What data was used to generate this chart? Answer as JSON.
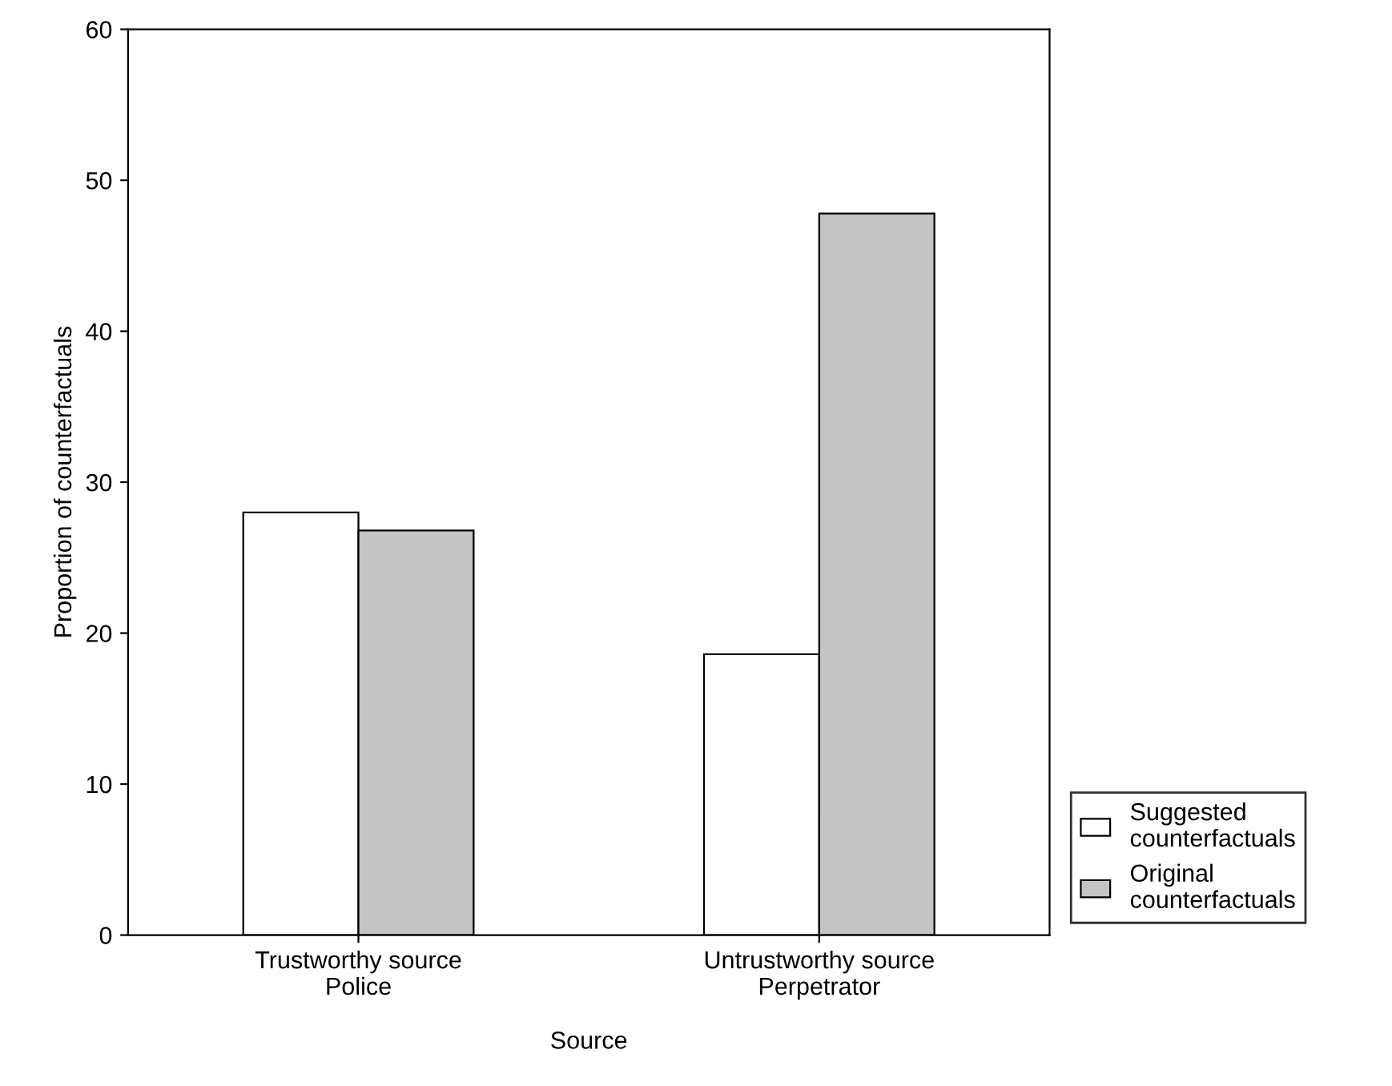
{
  "chart_data": {
    "type": "bar",
    "xlabel": "Source",
    "ylabel": "Proportion of counterfactuals",
    "categories": [
      "Trustworthy source\nPolice",
      "Untrustworthy source\nPerpetrator"
    ],
    "series": [
      {
        "name": "Suggested\ncounterfactuals",
        "color": "#ffffff",
        "values": [
          28,
          18.6
        ]
      },
      {
        "name": "Original\ncounterfactuals",
        "color": "#c4c4c4",
        "values": [
          26.8,
          47.8
        ]
      }
    ],
    "ylim": [
      0,
      60
    ],
    "yticks": [
      0,
      10,
      20,
      30,
      40,
      50,
      60
    ],
    "grid": false,
    "legend": "bottom right"
  }
}
